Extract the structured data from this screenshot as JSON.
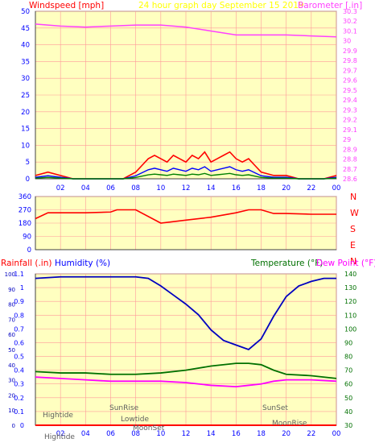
{
  "header": {
    "left": "Windspeed [mph]",
    "center": "24 hour graph day    September 15 2019",
    "right": "Barometer [.in]"
  },
  "colors": {
    "plot_bg": "#ffffc0",
    "grid": "#ff9a9a",
    "wind": "#ff0000",
    "gust": "#0000ff",
    "wind_green": "#008000",
    "barometer": "#ff40ff",
    "humidity": "#0000c0",
    "temperature": "#007000",
    "dewpoint": "#ff00ff",
    "rain": "#ff0000"
  },
  "x_ticks": [
    "02",
    "04",
    "06",
    "08",
    "10",
    "12",
    "14",
    "16",
    "18",
    "20",
    "22",
    "00"
  ],
  "wind_panel": {
    "left_ticks": [
      "0",
      "5",
      "10",
      "15",
      "20",
      "25",
      "30",
      "35",
      "40",
      "45",
      "50"
    ],
    "right_ticks": [
      "28.6",
      "28.7",
      "28.8",
      "28.9",
      "29",
      "29.1",
      "29.2",
      "29.3",
      "29.4",
      "29.5",
      "29.6",
      "29.7",
      "29.8",
      "29.9",
      "30",
      "30.1",
      "30.2",
      "30.3"
    ]
  },
  "dir_panel": {
    "left_ticks": [
      "0",
      "90",
      "180",
      "270",
      "360"
    ],
    "right_labels": [
      "N",
      "W",
      "S",
      "E",
      "N"
    ]
  },
  "bottom_panel": {
    "rain_label": "Rainfall (.in)",
    "humidity_label": "Humidity (%)",
    "temp_label": "Temperature (°F)",
    "dew_label": "Dew Point (°F)",
    "rain_ticks": [
      "0",
      "0.1",
      "0.2",
      "0.3",
      "0.4",
      "0.5",
      "0.6",
      "0.7",
      "0.8",
      "0.9",
      "1",
      "1.1"
    ],
    "hum_ticks": [
      "0",
      "10",
      "20",
      "30",
      "40",
      "50",
      "60",
      "70",
      "80",
      "90",
      "100"
    ],
    "temp_ticks": [
      "30",
      "40",
      "50",
      "60",
      "70",
      "80",
      "90",
      "100",
      "110",
      "120",
      "130",
      "140"
    ],
    "annotations": {
      "hightide1": "Hightide",
      "hightide2": "Hightide",
      "sunrise": "SunRise",
      "lowtide": "Lowtide",
      "moonset": "MoonSet",
      "sunset": "SunSet",
      "moonrise": "MoonRise"
    }
  },
  "chart_data": [
    {
      "type": "line",
      "title": "24 hour graph day    September 15 2019",
      "xlabel": "",
      "ylabel": "Windspeed [mph]",
      "y2label": "Barometer [.in]",
      "xlim": [
        0,
        24
      ],
      "ylim": [
        0,
        50
      ],
      "y2lim": [
        28.6,
        30.3
      ],
      "series": [
        {
          "name": "Windspeed [mph]",
          "x": [
            0,
            1,
            2,
            3,
            4,
            5,
            6,
            7,
            8,
            8.5,
            9,
            9.5,
            10,
            10.5,
            11,
            11.5,
            12,
            12.5,
            13,
            13.5,
            14,
            14.5,
            15,
            15.5,
            16,
            16.5,
            17,
            17.5,
            18,
            19,
            20,
            21,
            22,
            23,
            24
          ],
          "y": [
            1,
            2,
            1,
            0,
            0,
            0,
            0,
            0,
            2,
            4,
            6,
            7,
            6,
            5,
            7,
            6,
            5,
            7,
            6,
            8,
            5,
            6,
            7,
            8,
            6,
            5,
            6,
            4,
            2,
            1,
            1,
            0,
            0,
            0,
            1
          ]
        },
        {
          "name": "Barometer [.in]",
          "x": [
            0,
            2,
            4,
            6,
            8,
            10,
            12,
            14,
            16,
            18,
            20,
            22,
            24
          ],
          "y": [
            30.17,
            30.15,
            30.14,
            30.15,
            30.16,
            30.16,
            30.14,
            30.1,
            30.06,
            30.06,
            30.06,
            30.05,
            30.04
          ]
        }
      ]
    },
    {
      "type": "line",
      "ylabel": "Wind direction",
      "xlim": [
        0,
        24
      ],
      "ylim": [
        0,
        360
      ],
      "series": [
        {
          "name": "Direction",
          "x": [
            0,
            1,
            2,
            4,
            6,
            6.5,
            7,
            8,
            10,
            12,
            14,
            16,
            17,
            18,
            19,
            20,
            22,
            24
          ],
          "y": [
            210,
            250,
            250,
            250,
            255,
            270,
            270,
            270,
            180,
            200,
            220,
            250,
            270,
            270,
            245,
            245,
            240,
            240
          ]
        }
      ]
    },
    {
      "type": "line",
      "xlim": [
        0,
        24
      ],
      "series": [
        {
          "name": "Humidity (%)",
          "x": [
            0,
            2,
            4,
            6,
            8,
            9,
            10,
            11,
            12,
            13,
            14,
            15,
            16,
            17,
            18,
            19,
            20,
            21,
            22,
            23,
            24
          ],
          "y": [
            97,
            98,
            98,
            98,
            98,
            97,
            92,
            86,
            80,
            73,
            63,
            56,
            53,
            50,
            57,
            72,
            85,
            92,
            95,
            97,
            97
          ]
        },
        {
          "name": "Temperature (°F)",
          "x": [
            0,
            2,
            4,
            6,
            8,
            10,
            12,
            14,
            16,
            17,
            18,
            19,
            20,
            22,
            24
          ],
          "y": [
            69,
            68,
            68,
            67,
            67,
            68,
            70,
            73,
            75,
            75,
            74,
            70,
            67,
            66,
            64
          ]
        },
        {
          "name": "Dew Point (°F)",
          "x": [
            0,
            2,
            4,
            6,
            8,
            10,
            12,
            14,
            16,
            17,
            18,
            19,
            20,
            22,
            24
          ],
          "y": [
            65,
            64,
            63,
            62,
            62,
            62,
            61,
            59,
            58,
            59,
            60,
            62,
            63,
            63,
            62
          ]
        },
        {
          "name": "Rainfall (.in)",
          "x": [
            0,
            24
          ],
          "y": [
            0,
            0
          ]
        }
      ],
      "ylim_rain": [
        0,
        1.1
      ],
      "ylim_humidity": [
        0,
        100
      ],
      "ylim_temperature": [
        30,
        140
      ]
    }
  ]
}
